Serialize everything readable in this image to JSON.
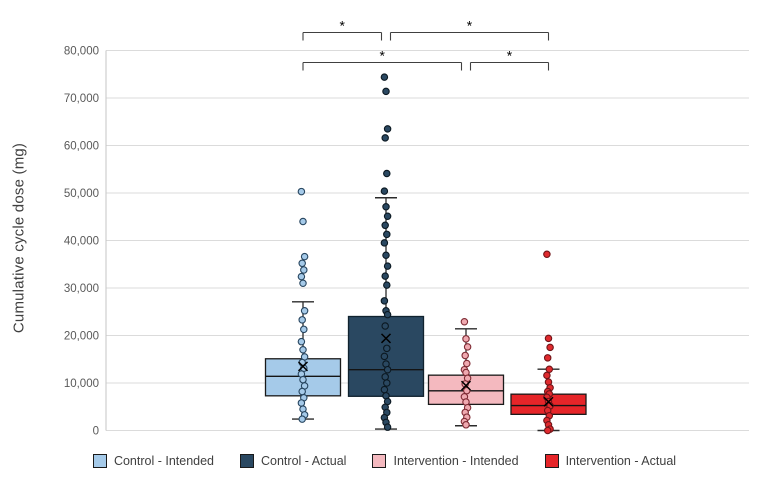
{
  "figure": {
    "background": "#ffffff",
    "gridline_color": "#dbdbdb",
    "axis_line_color": "#c6c6c6",
    "tick_text_color": "#595959",
    "bracket_color": "#404040",
    "star_color": "#000000"
  },
  "chart_data": {
    "type": "box",
    "title": "",
    "xlabel": "",
    "ylabel": "Cumulative cycle dose (mg)",
    "ylim": [
      0,
      80000
    ],
    "ytick_step": 10000,
    "ytick_labels": [
      "0",
      "10,000",
      "20,000",
      "30,000",
      "40,000",
      "50,000",
      "60,000",
      "70,000",
      "80,000"
    ],
    "grid": "horizontal",
    "legend_position": "bottom",
    "show_points": true,
    "show_mean_marker": true,
    "groups": [
      {
        "name": "Control - Intended",
        "slug": "control-intended",
        "box_fill": "#a5cae9",
        "box_border": "#1a1a1a",
        "dot_fill": "#a5cae9",
        "dot_stroke": "#27455f",
        "stats": {
          "whisker_low": 2400,
          "q1": 7300,
          "median": 11400,
          "q3": 15100,
          "whisker_high": 27100,
          "mean": 13500
        },
        "points": [
          50300,
          44000,
          36600,
          35200,
          33800,
          32400,
          31000,
          25200,
          23300,
          21300,
          18700,
          17000,
          15500,
          14300,
          13100,
          11900,
          10700,
          9400,
          8200,
          6900,
          5800,
          4500,
          3300,
          2400
        ]
      },
      {
        "name": "Control - Actual",
        "slug": "control-actual",
        "box_fill": "#2a4861",
        "box_border": "#10222e",
        "dot_fill": "#2a4861",
        "dot_stroke": "#0b1821",
        "stats": {
          "whisker_low": 300,
          "q1": 7200,
          "median": 12800,
          "q3": 24000,
          "whisker_high": 49000,
          "mean": 19400
        },
        "points": [
          74400,
          71400,
          63500,
          61600,
          54100,
          50400,
          47100,
          45100,
          43200,
          41300,
          39500,
          36900,
          34600,
          32500,
          30600,
          27300,
          25200,
          24400,
          22000,
          17300,
          15600,
          14000,
          12800,
          11300,
          10000,
          8600,
          7300,
          6100,
          4900,
          3800,
          2700,
          1700,
          700
        ]
      },
      {
        "name": "Intervention - Intended",
        "slug": "intervention-intended",
        "box_fill": "#f4b9bf",
        "box_border": "#1a1a1a",
        "dot_fill": "#efa9b0",
        "dot_stroke": "#7e2a33",
        "stats": {
          "whisker_low": 1000,
          "q1": 5500,
          "median": 8350,
          "q3": 11650,
          "whisker_high": 21400,
          "mean": 9450
        },
        "points": [
          22900,
          19300,
          17600,
          15800,
          14100,
          12800,
          12200,
          11000,
          9800,
          8400,
          7100,
          6000,
          4800,
          3800,
          2800,
          1900,
          1200
        ]
      },
      {
        "name": "Intervention - Actual",
        "slug": "intervention-actual",
        "box_fill": "#e62529",
        "box_border": "#1a1a1a",
        "dot_fill": "#e02a2e",
        "dot_stroke": "#701418",
        "stats": {
          "whisker_low": 0,
          "q1": 3400,
          "median": 5250,
          "q3": 7650,
          "whisker_high": 12900,
          "mean": 6050
        },
        "points": [
          37100,
          19400,
          17500,
          15300,
          12900,
          11600,
          10200,
          9000,
          8200,
          7700,
          7000,
          6100,
          5200,
          4200,
          3100,
          2100,
          1200,
          300,
          0
        ]
      }
    ],
    "significance_brackets": [
      {
        "row": 1,
        "from": "Control - Intended",
        "to": "Control - Actual",
        "label": "*"
      },
      {
        "row": 1,
        "from": "Control - Actual",
        "to": "Intervention - Actual",
        "label": "*"
      },
      {
        "row": 2,
        "from": "Control - Intended",
        "to": "Intervention - Intended",
        "label": "*"
      },
      {
        "row": 2,
        "from": "Intervention - Intended",
        "to": "Intervention - Actual",
        "label": "*"
      }
    ]
  }
}
